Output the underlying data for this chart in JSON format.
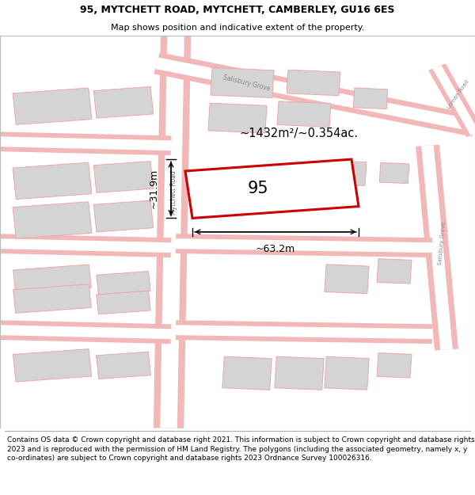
{
  "title_line1": "95, MYTCHETT ROAD, MYTCHETT, CAMBERLEY, GU16 6ES",
  "title_line2": "Map shows position and indicative extent of the property.",
  "footer_text": "Contains OS data © Crown copyright and database right 2021. This information is subject to Crown copyright and database rights 2023 and is reproduced with the permission of HM Land Registry. The polygons (including the associated geometry, namely x, y co-ordinates) are subject to Crown copyright and database rights 2023 Ordnance Survey 100026316.",
  "bg_color": "#ffffff",
  "map_bg": "#f5eeee",
  "road_color": "#f2b8b8",
  "building_fill": "#d4d4d4",
  "building_edge": "#eca8a8",
  "highlight_fill": "#ffffff",
  "highlight_edge": "#cc0000",
  "highlight_lw": 2.2,
  "label_95": "95",
  "area_label": "~1432m²/~0.354ac.",
  "width_label": "~63.2m",
  "height_label": "~31.9m",
  "road_label_mytchett": "Mytchett Road",
  "road_label_salisbury_grove_top": "Salisbury Grove",
  "road_label_salisbury_grove_right": "Salisbury Grove",
  "road_label_loman": "Loman Road",
  "title_fontsize": 9,
  "subtitle_fontsize": 8,
  "footer_fontsize": 6.5
}
